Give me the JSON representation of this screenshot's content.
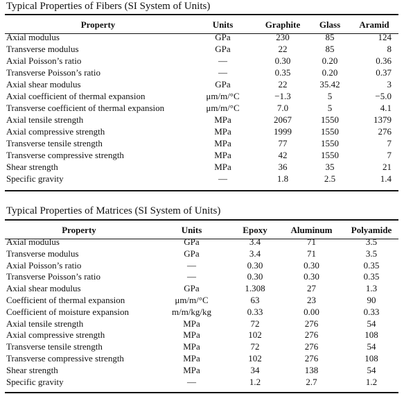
{
  "fibers": {
    "caption": "Typical Properties of Fibers (SI System of Units)",
    "headers": [
      "Property",
      "Units",
      "Graphite",
      "Glass",
      "Aramid"
    ],
    "rows": [
      [
        "Axial modulus",
        "GPa",
        "230",
        "85",
        "124"
      ],
      [
        "Transverse modulus",
        "GPa",
        "22",
        "85",
        "8"
      ],
      [
        "Axial Poisson’s ratio",
        "—",
        "0.30",
        "0.20",
        "0.36"
      ],
      [
        "Transverse Poisson’s ratio",
        "—",
        "0.35",
        "0.20",
        "0.37"
      ],
      [
        "Axial shear modulus",
        "GPa",
        "22",
        "35.42",
        "3"
      ],
      [
        "Axial coefficient of thermal expansion",
        "μm/m/°C",
        "−1.3",
        "5",
        "−5.0"
      ],
      [
        "Transverse coefficient of thermal expansion",
        "μm/m/°C",
        "7.0",
        "5",
        "4.1"
      ],
      [
        "Axial tensile strength",
        "MPa",
        "2067",
        "1550",
        "1379"
      ],
      [
        "Axial compressive strength",
        "MPa",
        "1999",
        "1550",
        "276"
      ],
      [
        "Transverse tensile strength",
        "MPa",
        "77",
        "1550",
        "7"
      ],
      [
        "Transverse compressive strength",
        "MPa",
        "42",
        "1550",
        "7"
      ],
      [
        "Shear strength",
        "MPa",
        "36",
        "35",
        "21"
      ],
      [
        "Specific gravity",
        "—",
        "1.8",
        "2.5",
        "1.4"
      ]
    ]
  },
  "matrices": {
    "caption": "Typical Properties of Matrices (SI System of Units)",
    "headers": [
      "Property",
      "Units",
      "Epoxy",
      "Aluminum",
      "Polyamide"
    ],
    "rows": [
      [
        "Axial modulus",
        "GPa",
        "3.4",
        "71",
        "3.5"
      ],
      [
        "Transverse modulus",
        "GPa",
        "3.4",
        "71",
        "3.5"
      ],
      [
        "Axial Poisson’s ratio",
        "—",
        "0.30",
        "0.30",
        "0.35"
      ],
      [
        "Transverse Poisson’s ratio",
        "—",
        "0.30",
        "0.30",
        "0.35"
      ],
      [
        "Axial shear modulus",
        "GPa",
        "1.308",
        "27",
        "1.3"
      ],
      [
        "Coefficient of thermal expansion",
        "μm/m/°C",
        "63",
        "23",
        "90"
      ],
      [
        "Coefficient of moisture expansion",
        "m/m/kg/kg",
        "0.33",
        "0.00",
        "0.33"
      ],
      [
        "Axial tensile strength",
        "MPa",
        "72",
        "276",
        "54"
      ],
      [
        "Axial compressive strength",
        "MPa",
        "102",
        "276",
        "108"
      ],
      [
        "Transverse tensile strength",
        "MPa",
        "72",
        "276",
        "54"
      ],
      [
        "Transverse compressive strength",
        "MPa",
        "102",
        "276",
        "108"
      ],
      [
        "Shear strength",
        "MPa",
        "34",
        "138",
        "54"
      ],
      [
        "Specific gravity",
        "—",
        "1.2",
        "2.7",
        "1.2"
      ]
    ]
  }
}
